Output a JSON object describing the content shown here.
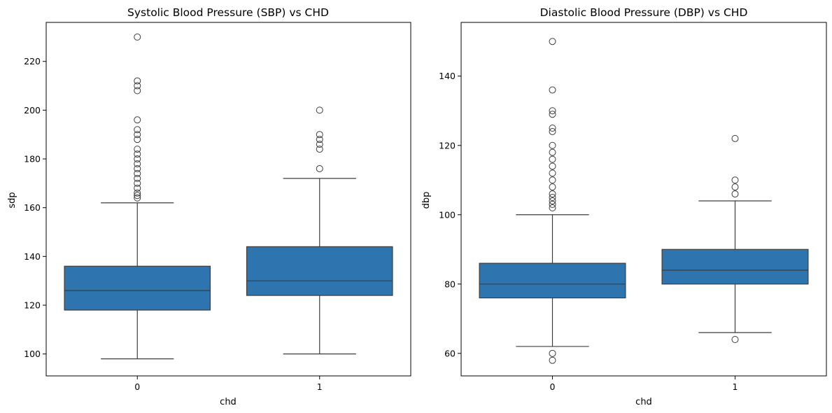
{
  "chart_data": [
    {
      "type": "box",
      "title": "Systolic Blood Pressure (SBP) vs CHD",
      "xlabel": "chd",
      "ylabel": "sdp",
      "categories": [
        "0",
        "1"
      ],
      "ylim": [
        91,
        236
      ],
      "yticks": [
        100,
        120,
        140,
        160,
        180,
        200,
        220
      ],
      "color": "#2e75b0",
      "boxes": [
        {
          "category": "0",
          "whisker_low": 98,
          "q1": 118,
          "median": 126,
          "q3": 136,
          "whisker_high": 162,
          "outliers": [
            164,
            165,
            166,
            168,
            170,
            172,
            174,
            176,
            178,
            180,
            182,
            184,
            188,
            190,
            192,
            196,
            208,
            210,
            212,
            230
          ]
        },
        {
          "category": "1",
          "whisker_low": 100,
          "q1": 124,
          "median": 130,
          "q3": 144,
          "whisker_high": 172,
          "outliers": [
            176,
            184,
            186,
            188,
            190,
            200
          ]
        }
      ]
    },
    {
      "type": "box",
      "title": "Diastolic Blood Pressure (DBP) vs CHD",
      "xlabel": "chd",
      "ylabel": "dbp",
      "categories": [
        "0",
        "1"
      ],
      "ylim": [
        53.5,
        155.5
      ],
      "yticks": [
        60,
        80,
        100,
        120,
        140
      ],
      "color": "#2e75b0",
      "boxes": [
        {
          "category": "0",
          "whisker_low": 62,
          "q1": 76,
          "median": 80,
          "q3": 86,
          "whisker_high": 100,
          "outliers": [
            58,
            60,
            102,
            103,
            104,
            105,
            106,
            108,
            110,
            112,
            114,
            116,
            118,
            120,
            124,
            125,
            129,
            130,
            136,
            150
          ]
        },
        {
          "category": "1",
          "whisker_low": 66,
          "q1": 80,
          "median": 84,
          "q3": 90,
          "whisker_high": 104,
          "outliers": [
            64,
            106,
            108,
            110,
            122
          ]
        }
      ]
    }
  ]
}
